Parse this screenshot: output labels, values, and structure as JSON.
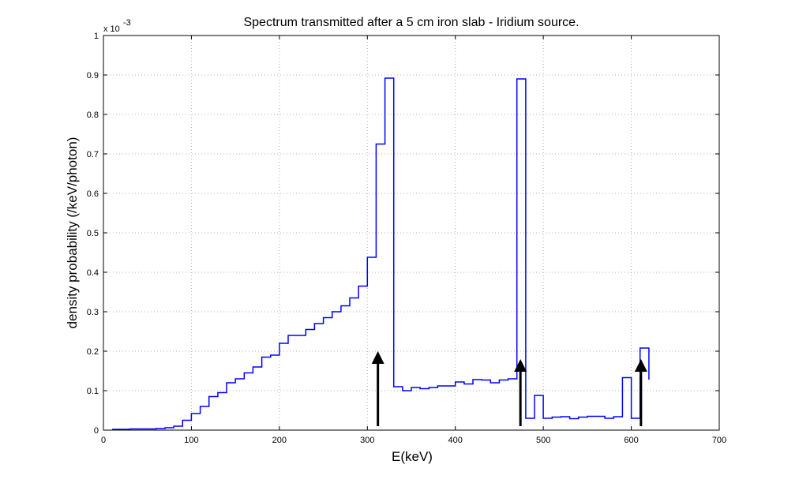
{
  "chart_data": {
    "type": "line",
    "title": "Spectrum transmitted after a 5 cm iron slab - Iridium source.",
    "xlabel": "E(keV)",
    "ylabel": "density probability (/keV/photon)",
    "y_multiplier": "x 10",
    "y_exponent": "-3",
    "xlim": [
      0,
      700
    ],
    "ylim": [
      0,
      1
    ],
    "grid": true,
    "xticks": [
      "0",
      "100",
      "200",
      "300",
      "400",
      "500",
      "600",
      "700"
    ],
    "yticks": [
      "0",
      "0.1",
      "0.2",
      "0.3",
      "0.4",
      "0.5",
      "0.6",
      "0.7",
      "0.8",
      "0.9",
      "1"
    ],
    "series": [
      {
        "color": "#0000ff",
        "x": [
          10,
          20,
          30,
          40,
          50,
          60,
          70,
          80,
          90,
          100,
          110,
          120,
          130,
          140,
          150,
          160,
          170,
          180,
          190,
          200,
          210,
          220,
          230,
          240,
          250,
          260,
          270,
          280,
          290,
          300,
          310,
          320,
          330,
          340,
          350,
          360,
          370,
          380,
          390,
          400,
          410,
          420,
          430,
          440,
          450,
          460,
          470,
          480,
          490,
          500,
          510,
          520,
          530,
          540,
          550,
          560,
          570,
          580,
          590,
          600,
          610
        ],
        "y": [
          0.002,
          0.002,
          0.003,
          0.003,
          0.003,
          0.004,
          0.006,
          0.01,
          0.025,
          0.042,
          0.06,
          0.085,
          0.095,
          0.12,
          0.13,
          0.145,
          0.16,
          0.185,
          0.19,
          0.22,
          0.24,
          0.24,
          0.255,
          0.27,
          0.285,
          0.3,
          0.315,
          0.335,
          0.365,
          0.438,
          0.725,
          0.892,
          0.11,
          0.1,
          0.108,
          0.105,
          0.108,
          0.112,
          0.112,
          0.122,
          0.117,
          0.128,
          0.127,
          0.12,
          0.127,
          0.13,
          0.89,
          0.03,
          0.088,
          0.03,
          0.033,
          0.034,
          0.029,
          0.033,
          0.035,
          0.035,
          0.03,
          0.034,
          0.133,
          0.03,
          0.208
        ],
        "end_x": 620,
        "end_y": 0.128
      }
    ],
    "annotations": [
      {
        "type": "arrow",
        "x": 312,
        "y_from": 0.01,
        "y_to": 0.2
      },
      {
        "type": "arrow",
        "x": 474,
        "y_from": 0.01,
        "y_to": 0.18
      },
      {
        "type": "arrow",
        "x": 611,
        "y_from": 0.01,
        "y_to": 0.18
      }
    ]
  }
}
